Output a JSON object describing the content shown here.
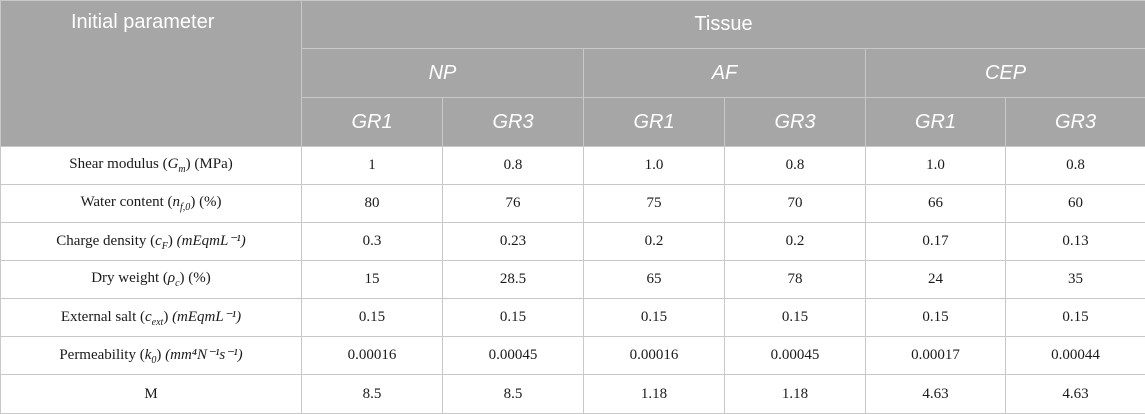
{
  "header": {
    "parameter_label": "Initial parameter",
    "tissue_label": "Tissue",
    "tissues": [
      "NP",
      "AF",
      "CEP"
    ],
    "groups": [
      "GR1",
      "GR3",
      "GR1",
      "GR3",
      "GR1",
      "GR3"
    ]
  },
  "rows": [
    {
      "name": "Shear modulus",
      "symbol": "G",
      "sub": "m",
      "sup": "",
      "unit": "(MPa)",
      "unit_italic": false,
      "values": [
        "1",
        "0.8",
        "1.0",
        "0.8",
        "1.0",
        "0.8"
      ]
    },
    {
      "name": "Water content",
      "symbol": "n",
      "sub": "f,0",
      "sup": "",
      "unit": "(%)",
      "unit_italic": false,
      "values": [
        "80",
        "76",
        "75",
        "70",
        "66",
        "60"
      ]
    },
    {
      "name": "Charge density",
      "symbol": "c",
      "sub": "F",
      "sup": "",
      "unit": "(mEqmL⁻¹)",
      "unit_italic": true,
      "values": [
        "0.3",
        "0.23",
        "0.2",
        "0.2",
        "0.17",
        "0.13"
      ]
    },
    {
      "name": "Dry weight",
      "symbol": "ρ",
      "sub": "c",
      "sup": "",
      "unit": "(%)",
      "unit_italic": false,
      "values": [
        "15",
        "28.5",
        "65",
        "78",
        "24",
        "35"
      ]
    },
    {
      "name": "External salt",
      "symbol": "c",
      "sub": "ext",
      "sup": "",
      "unit": "(mEqmL⁻¹)",
      "unit_italic": true,
      "values": [
        "0.15",
        "0.15",
        "0.15",
        "0.15",
        "0.15",
        "0.15"
      ]
    },
    {
      "name": "Permeability",
      "symbol": "k",
      "sub": "0",
      "sup": "",
      "unit": "(mm⁴N⁻¹s⁻¹)",
      "unit_italic": true,
      "values": [
        "0.00016",
        "0.00045",
        "0.00016",
        "0.00045",
        "0.00017",
        "0.00044"
      ]
    },
    {
      "name": "M",
      "symbol": "",
      "sub": "",
      "sup": "",
      "unit": "",
      "unit_italic": false,
      "values": [
        "8.5",
        "8.5",
        "1.18",
        "1.18",
        "4.63",
        "4.63"
      ]
    }
  ]
}
